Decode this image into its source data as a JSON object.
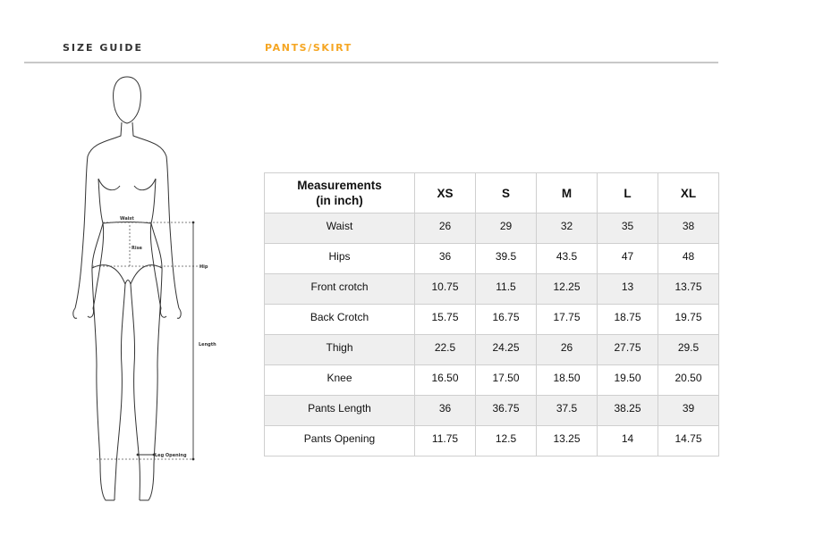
{
  "header": {
    "title": "SIZE GUIDE",
    "category": "PANTS/SKIRT",
    "accent_color": "#f5a623"
  },
  "figure": {
    "labels": {
      "waist": "Waist",
      "rise": "Rise",
      "hip": "Hip",
      "length": "Length",
      "leg_opening": "Leg Opening"
    }
  },
  "table": {
    "header_line1": "Measurements",
    "header_line2": "(in inch)",
    "sizes": [
      "XS",
      "S",
      "M",
      "L",
      "XL"
    ],
    "rows": [
      {
        "label": "Waist",
        "values": [
          "26",
          "29",
          "32",
          "35",
          "38"
        ]
      },
      {
        "label": "Hips",
        "values": [
          "36",
          "39.5",
          "43.5",
          "47",
          "48"
        ]
      },
      {
        "label": "Front crotch",
        "values": [
          "10.75",
          "11.5",
          "12.25",
          "13",
          "13.75"
        ]
      },
      {
        "label": "Back Crotch",
        "values": [
          "15.75",
          "16.75",
          "17.75",
          "18.75",
          "19.75"
        ]
      },
      {
        "label": "Thigh",
        "values": [
          "22.5",
          "24.25",
          "26",
          "27.75",
          "29.5"
        ]
      },
      {
        "label": "Knee",
        "values": [
          "16.50",
          "17.50",
          "18.50",
          "19.50",
          "20.50"
        ]
      },
      {
        "label": "Pants Length",
        "values": [
          "36",
          "36.75",
          "37.5",
          "38.25",
          "39"
        ]
      },
      {
        "label": "Pants Opening",
        "values": [
          "11.75",
          "12.5",
          "13.25",
          "14",
          "14.75"
        ]
      }
    ]
  }
}
